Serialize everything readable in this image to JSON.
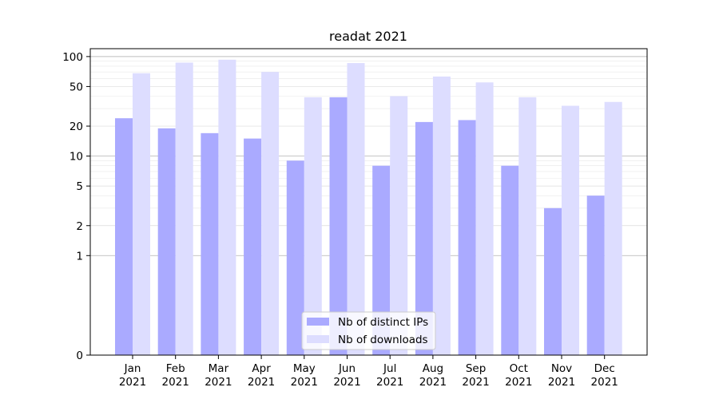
{
  "chart_data": {
    "type": "bar",
    "title": "readat 2021",
    "xlabel": "",
    "ylabel": "",
    "yscale": "symlog",
    "ylim": [
      0,
      120
    ],
    "yticks": [
      0,
      1,
      2,
      5,
      10,
      20,
      50,
      100
    ],
    "ytick_labels": [
      "0",
      "1",
      "2",
      "5",
      "10",
      "20",
      "50",
      "100"
    ],
    "categories": [
      [
        "Jan",
        "2021"
      ],
      [
        "Feb",
        "2021"
      ],
      [
        "Mar",
        "2021"
      ],
      [
        "Apr",
        "2021"
      ],
      [
        "May",
        "2021"
      ],
      [
        "Jun",
        "2021"
      ],
      [
        "Jul",
        "2021"
      ],
      [
        "Aug",
        "2021"
      ],
      [
        "Sep",
        "2021"
      ],
      [
        "Oct",
        "2021"
      ],
      [
        "Nov",
        "2021"
      ],
      [
        "Dec",
        "2021"
      ]
    ],
    "series": [
      {
        "name": "Nb of distinct IPs",
        "color": "#aaaaff",
        "values": [
          24,
          19,
          17,
          15,
          9,
          39,
          8,
          22,
          23,
          8,
          3,
          4
        ]
      },
      {
        "name": "Nb of downloads",
        "color": "#ddddff",
        "values": [
          68,
          87,
          93,
          70,
          39,
          86,
          40,
          63,
          55,
          39,
          32,
          35
        ]
      }
    ],
    "grid": "horizontal",
    "legend_position": "bottom-center"
  }
}
